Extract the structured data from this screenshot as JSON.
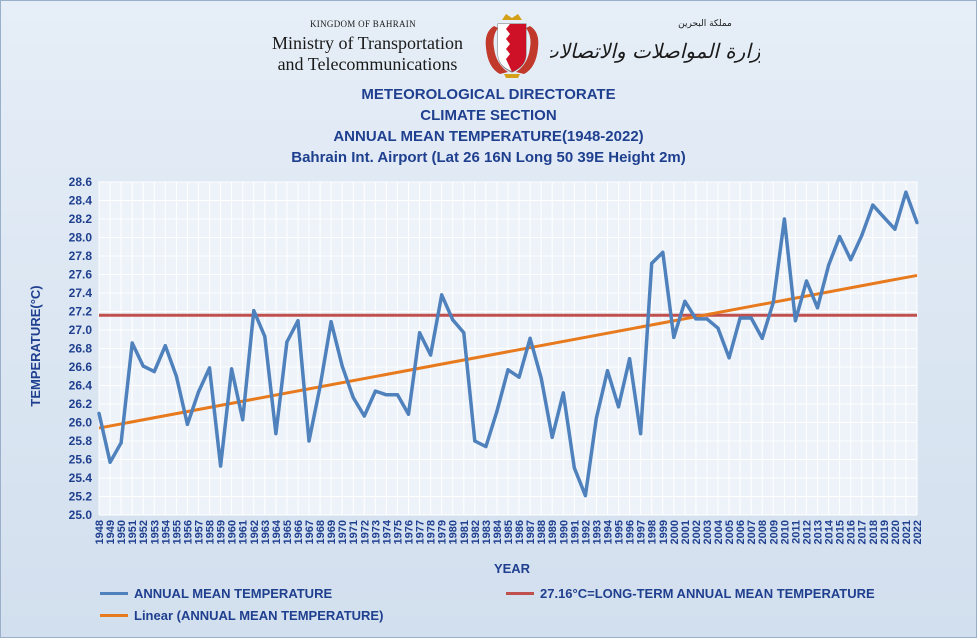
{
  "header": {
    "kingdom": "KINGDOM OF BAHRAIN",
    "ministry_line1": "Ministry of Transportation",
    "ministry_line2": "and Telecommunications",
    "arabic_small": "مملكة البحرين",
    "arabic_main": "وزارة المواصلات والاتصالات"
  },
  "titles": {
    "line1": "METEOROLOGICAL DIRECTORATE",
    "line2": "CLIMATE SECTION",
    "line3": "ANNUAL MEAN TEMPERATURE(1948-2022)",
    "line4": "Bahrain Int. Airport (Lat 26 16N Long 50 39E  Height 2m)"
  },
  "colors": {
    "series": "#4f81bd",
    "reference": "#c0504d",
    "trend": "#e87a1e",
    "text": "#1f3f8f",
    "grid": "#ffffff"
  },
  "legend": {
    "series": "ANNUAL MEAN TEMPERATURE",
    "reference": "27.16°C=LONG-TERM ANNUAL MEAN TEMPERATURE",
    "trend": "Linear (ANNUAL MEAN TEMPERATURE)"
  },
  "chart_data": {
    "type": "line",
    "title": "ANNUAL MEAN TEMPERATURE(1948-2022)",
    "xlabel": "YEAR",
    "ylabel": "TEMPERATURE(°C)",
    "ylim": [
      25.0,
      28.6
    ],
    "ytick_step": 0.2,
    "grid": true,
    "legend_position": "bottom",
    "x": [
      1948,
      1949,
      1950,
      1951,
      1952,
      1953,
      1954,
      1955,
      1956,
      1957,
      1958,
      1959,
      1960,
      1961,
      1962,
      1963,
      1964,
      1965,
      1966,
      1967,
      1968,
      1969,
      1970,
      1971,
      1972,
      1973,
      1974,
      1975,
      1976,
      1977,
      1978,
      1979,
      1980,
      1981,
      1982,
      1983,
      1984,
      1985,
      1986,
      1987,
      1988,
      1989,
      1990,
      1991,
      1992,
      1993,
      1994,
      1995,
      1996,
      1997,
      1998,
      1999,
      2000,
      2001,
      2002,
      2003,
      2004,
      2005,
      2006,
      2007,
      2008,
      2009,
      2010,
      2011,
      2012,
      2013,
      2014,
      2015,
      2016,
      2017,
      2018,
      2019,
      2020,
      2021,
      2022
    ],
    "series": [
      {
        "name": "ANNUAL MEAN TEMPERATURE",
        "values": [
          26.1,
          25.57,
          25.78,
          26.86,
          26.61,
          26.55,
          26.83,
          26.5,
          25.98,
          26.33,
          26.59,
          25.53,
          26.58,
          26.03,
          27.21,
          26.93,
          25.88,
          26.87,
          27.1,
          25.8,
          26.39,
          27.09,
          26.61,
          26.27,
          26.07,
          26.34,
          26.3,
          26.3,
          26.09,
          26.97,
          26.73,
          27.38,
          27.11,
          26.97,
          25.8,
          25.74,
          26.12,
          26.57,
          26.49,
          26.91,
          26.48,
          25.84,
          26.32,
          25.51,
          25.21,
          26.05,
          26.56,
          26.17,
          26.69,
          25.88,
          27.72,
          27.84,
          26.92,
          27.31,
          27.12,
          27.12,
          27.02,
          26.7,
          27.13,
          27.13,
          26.91,
          27.3,
          28.2,
          27.1,
          27.53,
          27.24,
          27.7,
          28.01,
          27.76,
          28.02,
          28.35,
          28.22,
          28.09,
          28.49,
          28.16
        ]
      },
      {
        "name": "27.16°C=LONG-TERM ANNUAL MEAN TEMPERATURE",
        "type": "reference",
        "value": 27.16
      },
      {
        "name": "Linear (ANNUAL MEAN TEMPERATURE)",
        "type": "trend",
        "start": 25.94,
        "end": 27.59
      }
    ]
  }
}
